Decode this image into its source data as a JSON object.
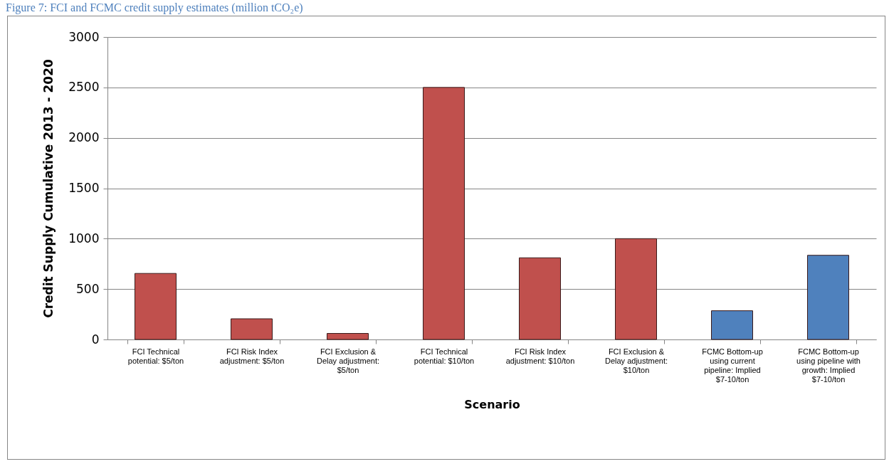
{
  "chart_data": {
    "type": "bar",
    "title": "Figure 7: FCI and FCMC credit supply estimates (million tCO₂e)",
    "xlabel": "Scenario",
    "ylabel": "Credit Supply Cumulative 2013 - 2020",
    "categories": [
      "FCI Technical potential: $5/ton",
      "FCI Risk Index adjustment: $5/ton",
      "FCI Exclusion & Delay adjustment: $5/ton",
      "FCI Technical potential: $10/ton",
      "FCI Risk Index adjustment: $10/ton",
      "FCI Exclusion & Delay adjustment: $10/ton",
      "FCMC Bottom-up using current pipeline: Implied $7-10/ton",
      "FCMC Bottom-up using pipeline with growth: Implied $7-10/ton"
    ],
    "values": [
      655,
      205,
      60,
      2500,
      810,
      1000,
      285,
      835
    ],
    "colors": [
      "#c0504d",
      "#c0504d",
      "#c0504d",
      "#c0504d",
      "#c0504d",
      "#c0504d",
      "#4f81bd",
      "#4f81bd"
    ],
    "ylim": [
      0,
      3000
    ],
    "yticks": [
      0,
      500,
      1000,
      1500,
      2000,
      2500,
      3000
    ],
    "grid": "y"
  }
}
